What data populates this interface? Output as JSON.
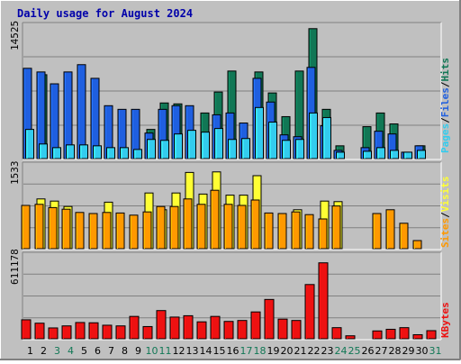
{
  "title": "Daily usage for August 2024",
  "colors": {
    "pages": "#33ccee",
    "files": "#1f5fe0",
    "hits": "#117755",
    "visits": "#ffff33",
    "sites": "#ff9900",
    "kbytes": "#ee1111",
    "weekend_label": "#117755",
    "weekday_label": "#000000",
    "title": "#0000aa",
    "legend_sep": "#000000"
  },
  "chart_data": [
    {
      "type": "bar",
      "panel": "hits-files-pages",
      "ymax_label": "14525",
      "ylim": [
        0,
        14525
      ],
      "categories": [
        "1",
        "2",
        "3",
        "4",
        "5",
        "6",
        "7",
        "8",
        "9",
        "10",
        "11",
        "12",
        "13",
        "14",
        "15",
        "16",
        "17",
        "18",
        "19",
        "20",
        "21",
        "22",
        "23",
        "24",
        "25",
        "26",
        "27",
        "28",
        "29",
        "30",
        "31"
      ],
      "legend": [
        "Pages",
        "/",
        "Files",
        "/",
        "Hits"
      ],
      "series": [
        {
          "name": "Hits",
          "values": [
            0,
            9200,
            0,
            0,
            0,
            0,
            0,
            0,
            0,
            3200,
            6100,
            6000,
            0,
            5000,
            7300,
            9600,
            0,
            9500,
            7200,
            4600,
            9600,
            14250,
            5400,
            1400,
            0,
            3500,
            5000,
            3800,
            600,
            1400,
            0
          ]
        },
        {
          "name": "Files",
          "values": [
            9900,
            9500,
            8200,
            9500,
            10300,
            8800,
            5800,
            5400,
            5400,
            2800,
            5400,
            5800,
            5800,
            0,
            4800,
            5000,
            3900,
            8800,
            6200,
            2600,
            2400,
            10000,
            3600,
            900,
            0,
            1200,
            3000,
            2700,
            700,
            1400,
            0
          ]
        },
        {
          "name": "Pages",
          "values": [
            3200,
            1600,
            1200,
            1500,
            1500,
            1400,
            1200,
            1200,
            1000,
            2100,
            2000,
            2700,
            3100,
            2900,
            3300,
            2100,
            2200,
            5600,
            4000,
            2000,
            2100,
            5000,
            4500,
            700,
            0,
            800,
            1200,
            900,
            700,
            900,
            0
          ]
        }
      ]
    },
    {
      "type": "bar",
      "panel": "visits-sites",
      "ymax_label": "1533",
      "ylim": [
        0,
        1533
      ],
      "categories": [
        "1",
        "2",
        "3",
        "4",
        "5",
        "6",
        "7",
        "8",
        "9",
        "10",
        "11",
        "12",
        "13",
        "14",
        "15",
        "16",
        "17",
        "18",
        "19",
        "20",
        "21",
        "22",
        "23",
        "24",
        "25",
        "26",
        "27",
        "28",
        "29",
        "30",
        "31"
      ],
      "legend": [
        "Sites",
        "/",
        "Visits"
      ],
      "series": [
        {
          "name": "Visits",
          "values": [
            0,
            920,
            880,
            780,
            0,
            0,
            860,
            0,
            0,
            1030,
            720,
            1030,
            1410,
            1010,
            1420,
            990,
            990,
            1350,
            0,
            0,
            720,
            0,
            880,
            870,
            0,
            0,
            0,
            0,
            0,
            0,
            0
          ]
        },
        {
          "name": "Sites",
          "values": [
            800,
            820,
            760,
            730,
            670,
            650,
            670,
            660,
            620,
            680,
            780,
            780,
            920,
            820,
            1080,
            820,
            800,
            900,
            660,
            650,
            680,
            630,
            550,
            790,
            0,
            0,
            650,
            720,
            470,
            150,
            0
          ]
        }
      ]
    },
    {
      "type": "bar",
      "panel": "kbytes",
      "ymax_label": "611178",
      "ylim": [
        0,
        611178
      ],
      "categories": [
        "1",
        "2",
        "3",
        "4",
        "5",
        "6",
        "7",
        "8",
        "9",
        "10",
        "11",
        "12",
        "13",
        "14",
        "15",
        "16",
        "17",
        "18",
        "19",
        "20",
        "21",
        "22",
        "23",
        "24",
        "25",
        "26",
        "27",
        "28",
        "29",
        "30",
        "31"
      ],
      "legend": [
        "KBytes"
      ],
      "series": [
        {
          "name": "KBytes",
          "values": [
            140000,
            115000,
            80000,
            95000,
            120000,
            118000,
            100000,
            95000,
            165000,
            90000,
            208000,
            160000,
            170000,
            125000,
            165000,
            128000,
            135000,
            198000,
            290000,
            145000,
            135000,
            400000,
            560000,
            82000,
            22000,
            0,
            58000,
            70000,
            82000,
            30000,
            60000
          ]
        }
      ]
    }
  ]
}
